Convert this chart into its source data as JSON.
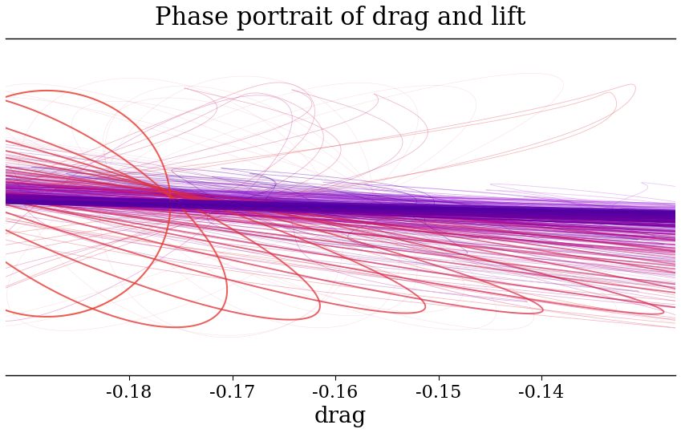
{
  "title": "Phase portrait of drag and lift",
  "xlabel": "drag",
  "xlim": [
    -0.192,
    -0.127
  ],
  "ylim": [
    -1.45,
    1.45
  ],
  "x_ticks": [
    -0.18,
    -0.17,
    -0.16,
    -0.15,
    -0.14
  ],
  "background_color": "#ffffff",
  "title_fontsize": 22,
  "xlabel_fontsize": 20,
  "tick_fontsize": 16
}
